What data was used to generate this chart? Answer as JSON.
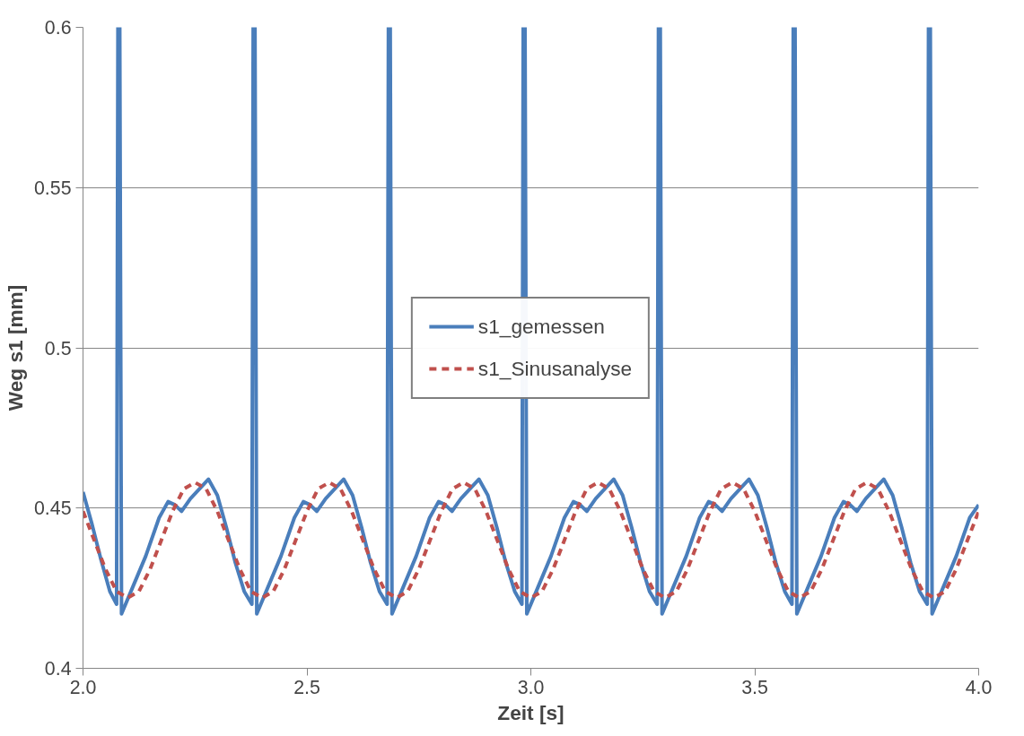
{
  "chart_data": {
    "type": "line",
    "xlabel": "Zeit [s]",
    "ylabel": "Weg s1 [mm]",
    "xlim": [
      2,
      4
    ],
    "xticks": [
      {
        "value": 2,
        "label": "2.0"
      },
      {
        "value": 2.5,
        "label": "2.5"
      },
      {
        "value": 3,
        "label": "3.0"
      },
      {
        "value": 3.5,
        "label": "3.5"
      },
      {
        "value": 4,
        "label": "4.0"
      }
    ],
    "ylim": [
      0.4,
      0.6
    ],
    "yticks": [
      0.4,
      0.45,
      0.5,
      0.55,
      0.6
    ],
    "grid": "y",
    "legend": "center",
    "series": [
      {
        "name": "s1_gemessen",
        "color": "#4a7ebb",
        "line_style": "solid",
        "x": [
          2.0,
          2.02,
          2.04,
          2.06,
          2.075,
          2.078,
          2.082,
          2.086,
          2.11,
          2.14,
          2.17,
          2.19,
          2.205,
          2.22,
          2.24,
          2.26,
          2.28,
          2.3,
          2.32,
          2.34,
          2.36,
          2.377,
          2.38,
          2.384,
          2.388,
          2.412,
          2.442,
          2.472,
          2.492,
          2.507,
          2.522,
          2.542,
          2.562,
          2.582,
          2.602,
          2.622,
          2.642,
          2.662,
          2.679,
          2.682,
          2.686,
          2.69,
          2.714,
          2.744,
          2.774,
          2.794,
          2.809,
          2.824,
          2.844,
          2.864,
          2.884,
          2.904,
          2.924,
          2.944,
          2.964,
          2.98,
          2.983,
          2.987,
          2.991,
          3.015,
          3.045,
          3.075,
          3.095,
          3.11,
          3.125,
          3.145,
          3.165,
          3.185,
          3.205,
          3.225,
          3.245,
          3.265,
          3.282,
          3.285,
          3.289,
          3.293,
          3.317,
          3.347,
          3.377,
          3.397,
          3.412,
          3.427,
          3.447,
          3.467,
          3.487,
          3.507,
          3.527,
          3.547,
          3.567,
          3.583,
          3.586,
          3.59,
          3.594,
          3.618,
          3.648,
          3.678,
          3.698,
          3.713,
          3.728,
          3.748,
          3.768,
          3.788,
          3.808,
          3.828,
          3.848,
          3.868,
          3.885,
          3.888,
          3.892,
          3.896,
          3.92,
          3.95,
          3.98,
          4.0
        ],
        "values": [
          0.455,
          0.445,
          0.434,
          0.424,
          0.42,
          0.6,
          0.6,
          0.417,
          0.425,
          0.435,
          0.447,
          0.452,
          0.451,
          0.449,
          0.453,
          0.456,
          0.459,
          0.454,
          0.444,
          0.433,
          0.424,
          0.42,
          0.6,
          0.6,
          0.417,
          0.425,
          0.435,
          0.447,
          0.452,
          0.451,
          0.449,
          0.453,
          0.456,
          0.459,
          0.454,
          0.444,
          0.433,
          0.424,
          0.42,
          0.6,
          0.6,
          0.417,
          0.425,
          0.435,
          0.447,
          0.452,
          0.451,
          0.449,
          0.453,
          0.456,
          0.459,
          0.454,
          0.444,
          0.433,
          0.424,
          0.42,
          0.6,
          0.6,
          0.417,
          0.425,
          0.435,
          0.447,
          0.452,
          0.451,
          0.449,
          0.453,
          0.456,
          0.459,
          0.454,
          0.444,
          0.433,
          0.424,
          0.42,
          0.6,
          0.6,
          0.417,
          0.425,
          0.435,
          0.447,
          0.452,
          0.451,
          0.449,
          0.453,
          0.456,
          0.459,
          0.454,
          0.444,
          0.433,
          0.424,
          0.42,
          0.6,
          0.6,
          0.417,
          0.425,
          0.435,
          0.447,
          0.452,
          0.451,
          0.449,
          0.453,
          0.456,
          0.459,
          0.454,
          0.444,
          0.433,
          0.424,
          0.42,
          0.6,
          0.6,
          0.417,
          0.425,
          0.435,
          0.447,
          0.451
        ]
      },
      {
        "name": "s1_Sinusanalyse",
        "color": "#c0504d",
        "line_style": "dashed",
        "x": [
          2.0,
          2.025,
          2.05,
          2.075,
          2.1,
          2.125,
          2.15,
          2.175,
          2.2,
          2.225,
          2.25,
          2.275,
          2.3,
          2.325,
          2.35,
          2.375,
          2.4,
          2.425,
          2.45,
          2.475,
          2.5,
          2.525,
          2.55,
          2.575,
          2.6,
          2.625,
          2.65,
          2.675,
          2.7,
          2.725,
          2.75,
          2.775,
          2.8,
          2.825,
          2.85,
          2.875,
          2.9,
          2.925,
          2.95,
          2.975,
          3.0,
          3.025,
          3.05,
          3.075,
          3.1,
          3.125,
          3.15,
          3.175,
          3.2,
          3.225,
          3.25,
          3.275,
          3.3,
          3.325,
          3.35,
          3.375,
          3.4,
          3.425,
          3.45,
          3.475,
          3.5,
          3.525,
          3.55,
          3.575,
          3.6,
          3.625,
          3.65,
          3.675,
          3.7,
          3.725,
          3.75,
          3.775,
          3.8,
          3.825,
          3.85,
          3.875,
          3.9,
          3.925,
          3.95,
          3.975,
          4.0
        ],
        "values": [
          0.449,
          0.44,
          0.431,
          0.424,
          0.422,
          0.424,
          0.431,
          0.44,
          0.449,
          0.456,
          0.458,
          0.456,
          0.449,
          0.44,
          0.431,
          0.424,
          0.422,
          0.424,
          0.431,
          0.44,
          0.449,
          0.456,
          0.458,
          0.456,
          0.449,
          0.44,
          0.431,
          0.424,
          0.422,
          0.424,
          0.431,
          0.44,
          0.449,
          0.456,
          0.458,
          0.456,
          0.449,
          0.44,
          0.431,
          0.424,
          0.422,
          0.424,
          0.431,
          0.44,
          0.449,
          0.456,
          0.458,
          0.456,
          0.449,
          0.44,
          0.431,
          0.424,
          0.422,
          0.424,
          0.431,
          0.44,
          0.449,
          0.456,
          0.458,
          0.456,
          0.449,
          0.44,
          0.431,
          0.424,
          0.422,
          0.424,
          0.431,
          0.44,
          0.449,
          0.456,
          0.458,
          0.456,
          0.449,
          0.44,
          0.431,
          0.424,
          0.422,
          0.424,
          0.431,
          0.44,
          0.449
        ]
      }
    ]
  }
}
